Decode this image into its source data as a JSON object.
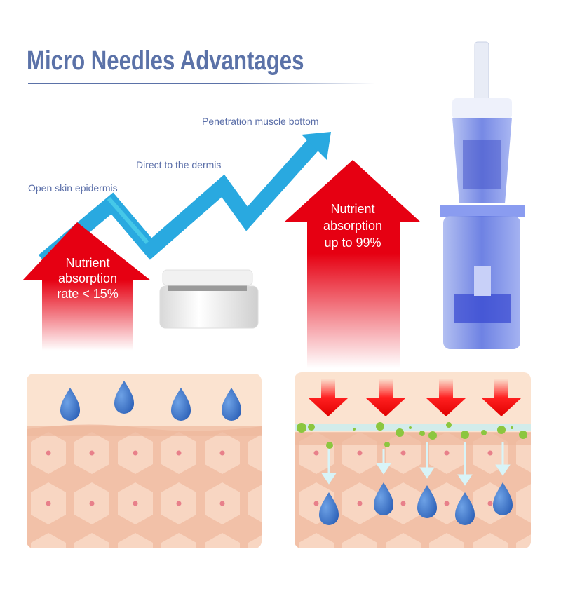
{
  "title": "Micro Needles Advantages",
  "stages": [
    "Open skin epidermis",
    "Direct to the dermis",
    "Penetration muscle bottom"
  ],
  "left_arrow": {
    "lines": [
      "Nutrient",
      "absorption",
      "rate < 15%"
    ]
  },
  "right_arrow": {
    "lines": [
      "Nutrient",
      "absorption",
      "up to 99%"
    ]
  },
  "colors": {
    "title": "#5b72a8",
    "trend_arrow": "#29a9e0",
    "absorption_arrow": "#e60012",
    "skin": "#f6cdb5",
    "drop": "#3f78c8",
    "nutrient": "#8cc63f"
  },
  "icons": [
    "trend-up-arrow",
    "red-up-arrow",
    "cream-jar",
    "needle-cartridge",
    "water-drop",
    "red-down-arrow"
  ]
}
